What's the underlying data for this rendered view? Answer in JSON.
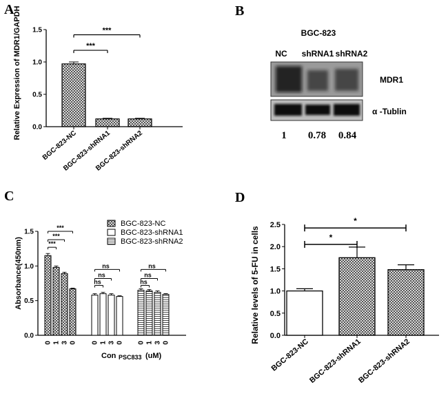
{
  "panels": {
    "A": {
      "letter": "A"
    },
    "B": {
      "letter": "B"
    },
    "C": {
      "letter": "C"
    },
    "D": {
      "letter": "D"
    }
  },
  "western_blot": {
    "cell_line": "BGC-823",
    "lanes": [
      "NC",
      "shRNA1",
      "shRNA2"
    ],
    "bands": [
      "MDR1",
      "α -Tublin"
    ],
    "values": [
      "1",
      "0.78",
      "0.84"
    ]
  },
  "chart_data": [
    {
      "panel": "A",
      "type": "bar",
      "categories": [
        "BGC-823-NC",
        "BGC-823-shRNA1",
        "BGC-823-shRNA2"
      ],
      "values": [
        0.97,
        0.12,
        0.12
      ],
      "errors": [
        0.03,
        0.01,
        0.01
      ],
      "ylabel": "Relative Expression of MDR1/GAPDH",
      "ylim": [
        0,
        1.5
      ],
      "yticks": [
        "0.0",
        "0.5",
        "1.0",
        "1.5"
      ],
      "significance": [
        {
          "from": "BGC-823-NC",
          "to": "BGC-823-shRNA1",
          "label": "***"
        },
        {
          "from": "BGC-823-NC",
          "to": "BGC-823-shRNA2",
          "label": "***"
        }
      ],
      "bar_fill": "crosshatch"
    },
    {
      "panel": "C",
      "type": "bar",
      "groups": [
        "BGC-823-NC",
        "BGC-823-shRNA1",
        "BGC-823-shRNA2"
      ],
      "x_tick_labels": [
        "0",
        "1",
        "3",
        "0"
      ],
      "series": [
        {
          "name": "BGC-823-NC",
          "values": [
            1.15,
            0.98,
            0.89,
            0.67
          ],
          "errors": [
            0.03,
            0.02,
            0.02,
            0.01
          ],
          "fill": "crosshatch"
        },
        {
          "name": "BGC-823-shRNA1",
          "values": [
            0.58,
            0.6,
            0.58,
            0.56
          ],
          "errors": [
            0.02,
            0.02,
            0.02,
            0.01
          ],
          "fill": "white"
        },
        {
          "name": "BGC-823-shRNA2",
          "values": [
            0.65,
            0.64,
            0.62,
            0.59
          ],
          "errors": [
            0.02,
            0.02,
            0.02,
            0.01
          ],
          "fill": "horizontal-lines"
        }
      ],
      "ylabel": "Absorbance(450nm)",
      "xlabel_main": "Con",
      "xlabel_sub": "PSC833",
      "xlabel_unit": "(uM)",
      "ylim": [
        0,
        1.5
      ],
      "yticks": [
        "0.0",
        "0.5",
        "1.0",
        "1.5"
      ],
      "significance_labels": [
        "***",
        "***",
        "***",
        "ns",
        "ns",
        "ns",
        "ns",
        "ns",
        "ns"
      ],
      "legend_position": "top-right"
    },
    {
      "panel": "D",
      "type": "bar",
      "categories": [
        "BGC-823-NC",
        "BGC-823-shRNA1",
        "BGC-823-shRNA2"
      ],
      "values": [
        1.0,
        1.75,
        1.48
      ],
      "errors": [
        0.05,
        0.24,
        0.11
      ],
      "fills": [
        "white",
        "crosshatch",
        "crosshatch"
      ],
      "ylabel": "Relative levels of 5-FU in cells",
      "ylim": [
        0,
        2.5
      ],
      "yticks": [
        "0.0",
        "0.5",
        "1.0",
        "1.5",
        "2.0",
        "2.5"
      ],
      "significance": [
        {
          "from": "BGC-823-NC",
          "to": "BGC-823-shRNA1",
          "label": "*"
        },
        {
          "from": "BGC-823-NC",
          "to": "BGC-823-shRNA2",
          "label": "*"
        }
      ]
    }
  ]
}
